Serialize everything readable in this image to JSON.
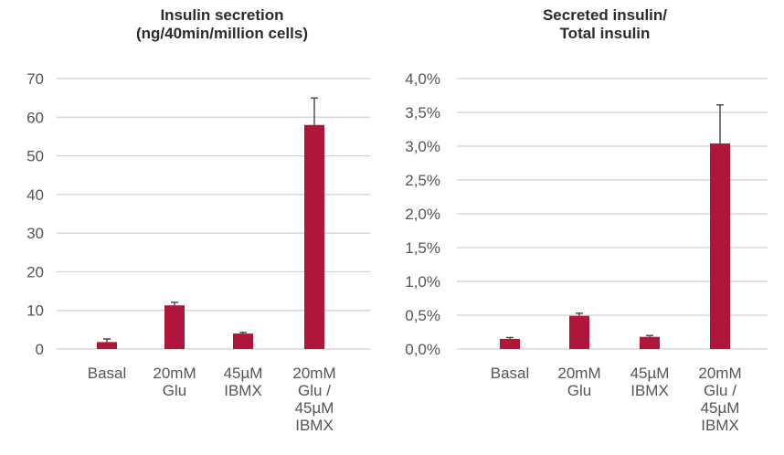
{
  "chart_data": [
    {
      "type": "bar",
      "title_lines": [
        "Insulin secretion",
        "(ng/40min/million cells)"
      ],
      "categories": [
        [
          "Basal"
        ],
        [
          "20mM",
          "Glu"
        ],
        [
          "45µM",
          "IBMX"
        ],
        [
          "20mM",
          "Glu /",
          "45µM",
          "IBMX"
        ]
      ],
      "values": [
        1.8,
        11.3,
        4.0,
        58.0
      ],
      "errors": [
        0.8,
        0.8,
        0.3,
        7.0
      ],
      "ylim": [
        0,
        70
      ],
      "yticks": [
        0,
        10,
        20,
        30,
        40,
        50,
        60,
        70
      ],
      "ytick_labels": [
        "0",
        "10",
        "20",
        "30",
        "40",
        "50",
        "60",
        "70"
      ],
      "grid": true,
      "color": "#b0163a"
    },
    {
      "type": "bar",
      "title_lines": [
        "Secreted insulin/",
        "Total insulin"
      ],
      "categories": [
        [
          "Basal"
        ],
        [
          "20mM",
          "Glu"
        ],
        [
          "45µM",
          "IBMX"
        ],
        [
          "20mM",
          "Glu /",
          "45µM",
          "IBMX"
        ]
      ],
      "values": [
        0.15,
        0.49,
        0.18,
        3.04
      ],
      "errors": [
        0.02,
        0.04,
        0.02,
        0.57
      ],
      "ylim": [
        0,
        4.0
      ],
      "yticks": [
        0,
        0.5,
        1.0,
        1.5,
        2.0,
        2.5,
        3.0,
        3.5,
        4.0
      ],
      "ytick_labels": [
        "0,0%",
        "0,5%",
        "1,0%",
        "1,5%",
        "2,0%",
        "2,5%",
        "3,0%",
        "3,5%",
        "4,0%"
      ],
      "grid": true,
      "color": "#b0163a"
    }
  ]
}
